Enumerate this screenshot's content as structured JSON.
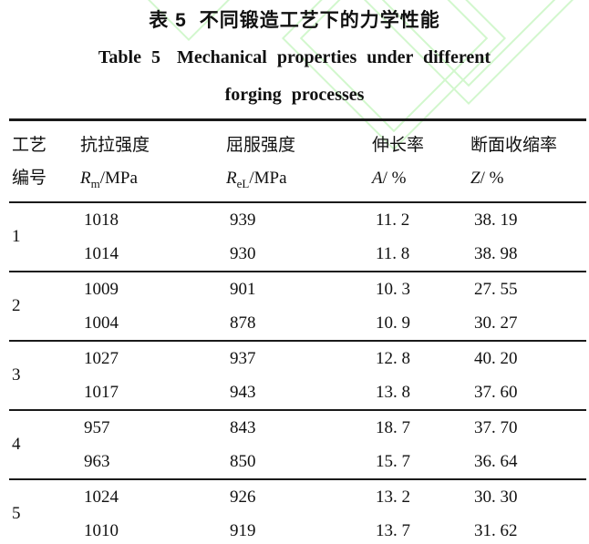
{
  "colors": {
    "text": "#111111",
    "rule": "#1a1a1a",
    "watermark_green": "#d2f7cd"
  },
  "title": {
    "zh_label": "表 5",
    "zh_text": "不同锻造工艺下的力学性能",
    "en_label": "Table 5",
    "en_text_line1": "Mechanical properties under different",
    "en_text_line2": "forging processes"
  },
  "table": {
    "header": {
      "col1": {
        "line1": "工艺",
        "line2": "编号"
      },
      "col2": {
        "zh": "抗拉强度",
        "sym": "R",
        "sub": "m",
        "unit": "/MPa"
      },
      "col3": {
        "zh": "屈服强度",
        "sym": "R",
        "sub": "eL",
        "unit": "/MPa"
      },
      "col4": {
        "zh": "伸长率",
        "sym": "A",
        "sub": "",
        "unit": "/ %"
      },
      "col5": {
        "zh": "断面收缩率",
        "sym": "Z",
        "sub": "",
        "unit": "/ %"
      }
    },
    "groups": [
      {
        "no": "1",
        "rows": [
          [
            "1018",
            "939",
            "11. 2",
            "38. 19"
          ],
          [
            "1014",
            "930",
            "11. 8",
            "38. 98"
          ]
        ]
      },
      {
        "no": "2",
        "rows": [
          [
            "1009",
            "901",
            "10. 3",
            "27. 55"
          ],
          [
            "1004",
            "878",
            "10. 9",
            "30. 27"
          ]
        ]
      },
      {
        "no": "3",
        "rows": [
          [
            "1027",
            "937",
            "12. 8",
            "40. 20"
          ],
          [
            "1017",
            "943",
            "13. 8",
            "37. 60"
          ]
        ]
      },
      {
        "no": "4",
        "rows": [
          [
            "957",
            "843",
            "18. 7",
            "37. 70"
          ],
          [
            "963",
            "850",
            "15. 7",
            "36. 64"
          ]
        ]
      },
      {
        "no": "5",
        "rows": [
          [
            "1024",
            "926",
            "13. 2",
            "30. 30"
          ],
          [
            "1010",
            "919",
            "13. 7",
            "31. 62"
          ]
        ]
      }
    ]
  },
  "chart_data": {
    "type": "table",
    "title": "表5 不同锻造工艺下的力学性能 / Table 5 Mechanical properties under different forging processes",
    "columns": [
      "工艺编号",
      "抗拉强度 Rm/MPa",
      "屈服强度 ReL/MPa",
      "伸长率 A/%",
      "断面收缩率 Z/%"
    ],
    "rows": [
      [
        "1",
        1018,
        939,
        11.2,
        38.19
      ],
      [
        "1",
        1014,
        930,
        11.8,
        38.98
      ],
      [
        "2",
        1009,
        901,
        10.3,
        27.55
      ],
      [
        "2",
        1004,
        878,
        10.9,
        30.27
      ],
      [
        "3",
        1027,
        937,
        12.8,
        40.2
      ],
      [
        "3",
        1017,
        943,
        13.8,
        37.6
      ],
      [
        "4",
        957,
        843,
        18.7,
        37.7
      ],
      [
        "4",
        963,
        850,
        15.7,
        36.64
      ],
      [
        "5",
        1024,
        926,
        13.2,
        30.3
      ],
      [
        "5",
        1010,
        919,
        13.7,
        31.62
      ]
    ]
  }
}
